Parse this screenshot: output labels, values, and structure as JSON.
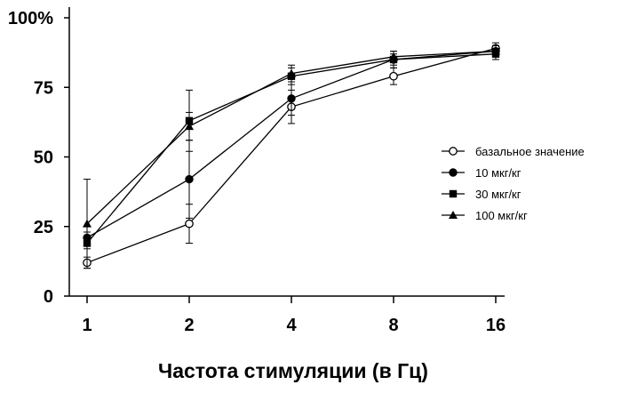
{
  "chart_data": {
    "type": "line",
    "title": "",
    "xlabel": "Частота стимуляции (в Гц)",
    "ylabel": "",
    "x": [
      "1",
      "2",
      "4",
      "8",
      "16"
    ],
    "y_ticks": [
      "0",
      "25",
      "50",
      "75",
      "100%"
    ],
    "y_tick_values": [
      0,
      25,
      50,
      75,
      100
    ],
    "ylim": [
      0,
      100
    ],
    "grid": false,
    "legend_position": "right",
    "series": [
      {
        "name": "базальное значение",
        "marker": "open-circle",
        "values": [
          12,
          26,
          68,
          79,
          89
        ],
        "errors": [
          2,
          7,
          6,
          3,
          2
        ]
      },
      {
        "name": "10 мкг/кг",
        "marker": "filled-circle",
        "values": [
          21,
          42,
          71,
          85,
          88
        ],
        "errors": [
          2,
          14,
          6,
          3,
          2
        ]
      },
      {
        "name": "30 мкг/кг",
        "marker": "filled-square",
        "values": [
          19,
          63,
          79,
          85,
          87
        ],
        "errors": [
          2,
          11,
          3,
          2,
          2
        ]
      },
      {
        "name": "100 мкг/кг",
        "marker": "filled-triangle",
        "values": [
          26,
          61,
          80,
          86,
          88
        ],
        "errors": [
          16,
          5,
          3,
          2,
          2
        ]
      }
    ]
  }
}
